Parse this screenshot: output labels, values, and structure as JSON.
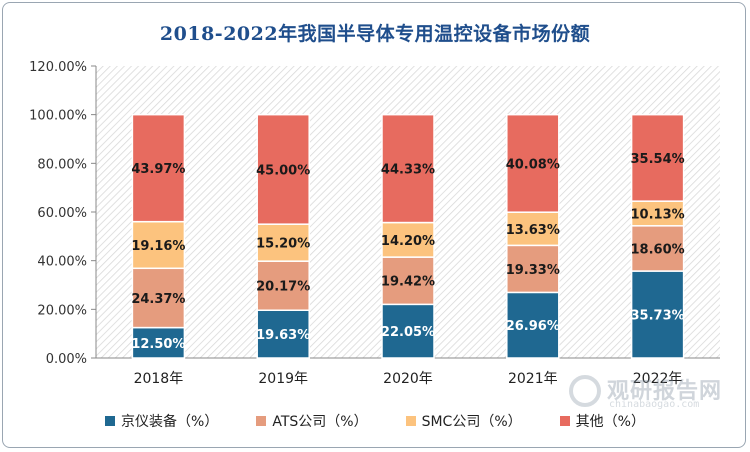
{
  "title": "2018-2022年我国半导体专用温控设备市场份额",
  "chart_data": {
    "type": "bar",
    "stacked": true,
    "categories": [
      "2018年",
      "2019年",
      "2020年",
      "2021年",
      "2022年"
    ],
    "series": [
      {
        "name": "京仪装备（%）",
        "color": "#1f6891",
        "values": [
          12.5,
          19.63,
          22.05,
          26.96,
          35.73
        ],
        "labels": [
          "12.50%",
          "19.63%",
          "22.05%",
          "26.96%",
          "35.73%"
        ]
      },
      {
        "name": "ATS公司（%）",
        "color": "#e59c7e",
        "values": [
          24.37,
          20.17,
          19.42,
          19.33,
          18.6
        ],
        "labels": [
          "24.37%",
          "20.17%",
          "19.42%",
          "19.33%",
          "18.60%"
        ]
      },
      {
        "name": "SMC公司（%）",
        "color": "#fcc37e",
        "values": [
          19.16,
          15.2,
          14.2,
          13.63,
          10.13
        ],
        "labels": [
          "19.16%",
          "15.20%",
          "14.20%",
          "13.63%",
          "10.13%"
        ]
      },
      {
        "name": "其他（%）",
        "color": "#e76b5f",
        "values": [
          43.97,
          45.0,
          44.33,
          40.08,
          35.54
        ],
        "labels": [
          "43.97%",
          "45.00%",
          "44.33%",
          "40.08%",
          "35.54%"
        ]
      }
    ],
    "yticks": [
      "0.00%",
      "20.00%",
      "40.00%",
      "60.00%",
      "80.00%",
      "100.00%",
      "120.00%"
    ],
    "ylim": [
      0,
      120
    ],
    "grid": false,
    "legend_position": "bottom"
  },
  "watermark": {
    "main": "观研报告网",
    "sub": "chinabaogao.com"
  }
}
